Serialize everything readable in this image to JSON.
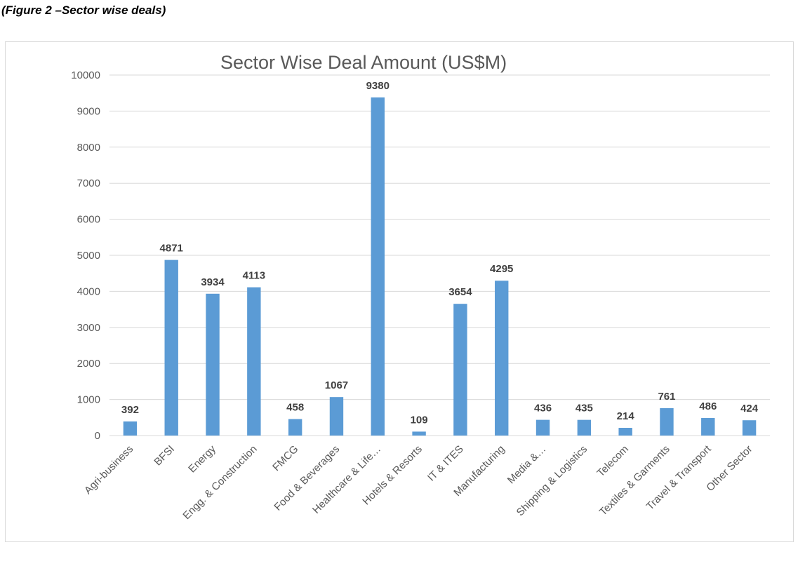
{
  "figure_caption": "(Figure 2 –Sector wise deals)",
  "chart_data": {
    "type": "bar",
    "title": "Sector Wise Deal Amount (US$M)",
    "xlabel": "",
    "ylabel": "",
    "ylim": [
      0,
      10000
    ],
    "ytick_step": 1000,
    "grid": true,
    "legend": "none",
    "bar_color": "#5b9bd5",
    "categories": [
      "Agri-business",
      "BFSI",
      "Energy",
      "Engg. & Construction",
      "FMCG",
      "Food & Beverages",
      "Healthcare & Life…",
      "Hotels & Resorts",
      "IT & ITES",
      "Manufacturing",
      "Media &…",
      "Shipping & Logistics",
      "Telecom",
      "Textiles & Garments",
      "Travel & Transport",
      "Other Sector"
    ],
    "values": [
      392,
      4871,
      3934,
      4113,
      458,
      1067,
      9380,
      109,
      3654,
      4295,
      436,
      435,
      214,
      761,
      486,
      424
    ]
  }
}
